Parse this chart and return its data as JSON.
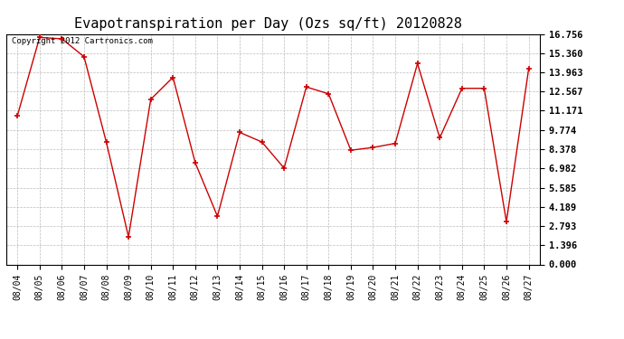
{
  "title": "Evapotranspiration per Day (Ozs sq/ft) 20120828",
  "copyright": "Copyright 2012 Cartronics.com",
  "dates": [
    "08/04",
    "08/05",
    "08/06",
    "08/07",
    "08/08",
    "08/09",
    "08/10",
    "08/11",
    "08/12",
    "08/13",
    "08/14",
    "08/15",
    "08/16",
    "08/17",
    "08/18",
    "08/19",
    "08/20",
    "08/21",
    "08/22",
    "08/23",
    "08/24",
    "08/25",
    "08/26",
    "08/27"
  ],
  "values": [
    10.8,
    16.5,
    16.4,
    15.1,
    8.9,
    2.0,
    12.0,
    13.6,
    7.4,
    3.5,
    9.6,
    8.9,
    7.0,
    12.9,
    12.4,
    8.3,
    8.5,
    8.8,
    14.6,
    9.2,
    12.8,
    12.8,
    3.1,
    14.2
  ],
  "line_color": "#cc0000",
  "marker": "+",
  "background_color": "#ffffff",
  "plot_bg_color": "#ffffff",
  "grid_color": "#bbbbbb",
  "yticks": [
    0.0,
    1.396,
    2.793,
    4.189,
    5.585,
    6.982,
    8.378,
    9.774,
    11.171,
    12.567,
    13.963,
    15.36,
    16.756
  ],
  "ylim": [
    0.0,
    16.756
  ],
  "legend_bg": "#cc0000",
  "legend_text_color": "#ffffff",
  "title_fontsize": 11,
  "copyright_fontsize": 6.5,
  "axis_label_fontsize": 7,
  "ytick_fontsize": 7.5,
  "legend_fontsize": 8
}
